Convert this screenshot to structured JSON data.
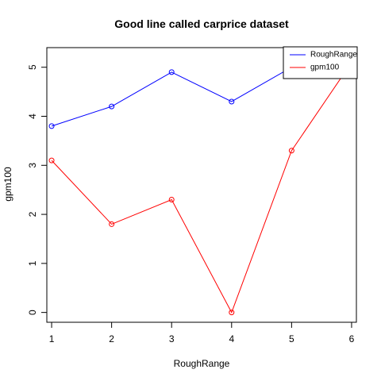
{
  "chart_data": {
    "type": "line",
    "title": "Good line called carprice dataset",
    "xlabel": "RoughRange",
    "ylabel": "gpm100",
    "x_ticks": [
      1,
      2,
      3,
      4,
      5,
      6
    ],
    "y_ticks": [
      0,
      1,
      2,
      3,
      4,
      5
    ],
    "xlim": [
      0.92,
      6.08
    ],
    "ylim": [
      -0.2,
      5.4
    ],
    "grid": false,
    "legend_position": "top-right",
    "series": [
      {
        "name": "RoughRange",
        "color": "#0000ff",
        "marker": "open-circle",
        "x": [
          1,
          2,
          3,
          4,
          5,
          6
        ],
        "y": [
          3.8,
          4.2,
          4.9,
          4.3,
          5.0,
          5.1
        ]
      },
      {
        "name": "gpm100",
        "color": "#ff0000",
        "marker": "open-circle",
        "x": [
          1,
          2,
          3,
          4,
          5,
          6
        ],
        "y": [
          3.1,
          1.8,
          2.3,
          0.0,
          3.3,
          5.1
        ]
      }
    ]
  }
}
